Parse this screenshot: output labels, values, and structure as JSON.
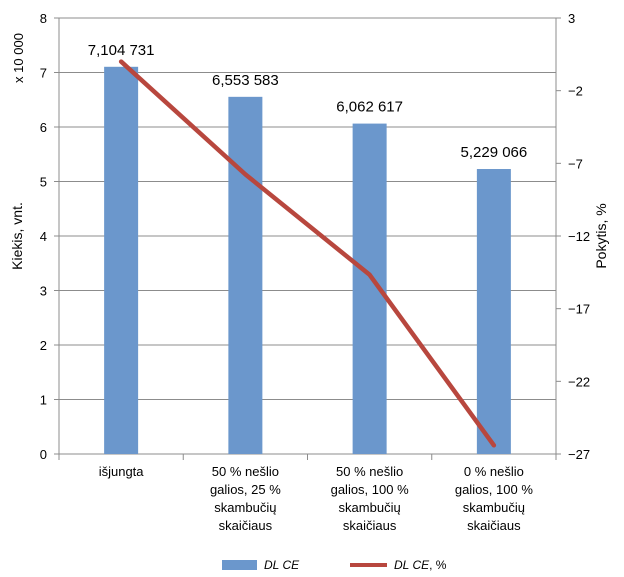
{
  "chart_data": {
    "type": "bar+line",
    "categories": [
      [
        "išjungta"
      ],
      [
        "50 % nešlio",
        "galios, 25 %",
        "skambučių",
        "skaičiaus"
      ],
      [
        "50 % nešlio",
        "galios, 100 %",
        "skambučių",
        "skaičiaus"
      ],
      [
        "0 % nešlio",
        "galios, 100 %",
        "skambučių",
        "skaičiaus"
      ]
    ],
    "bar_series": {
      "name": "DL CE",
      "legend_name": "DL CE",
      "values": [
        7.104731,
        6.553583,
        6.062617,
        5.229066
      ],
      "data_labels": [
        "7,104 731",
        "6,553 583",
        "6,062 617",
        "5,229 066"
      ],
      "color": "#6b97cc"
    },
    "line_series": {
      "name": "DL CE, %",
      "legend_name": "DL CE",
      "legend_suffix": ", %",
      "values": [
        0,
        -7.76,
        -14.67,
        -26.4
      ],
      "color": "#b8473e"
    },
    "y_left": {
      "label": "Kiekis, vnt.",
      "multiplier": "x 10 000",
      "min": 0,
      "max": 8,
      "step": 1,
      "ticks": [
        "0",
        "1",
        "2",
        "3",
        "4",
        "5",
        "6",
        "7",
        "8"
      ]
    },
    "y_right": {
      "label": "Pokytis, %",
      "min": -27,
      "max": 3,
      "step": 5,
      "ticks": [
        "3",
        "−2",
        "−7",
        "−12",
        "−17",
        "−22",
        "−27"
      ]
    },
    "grid": true,
    "legend_position": "bottom"
  }
}
